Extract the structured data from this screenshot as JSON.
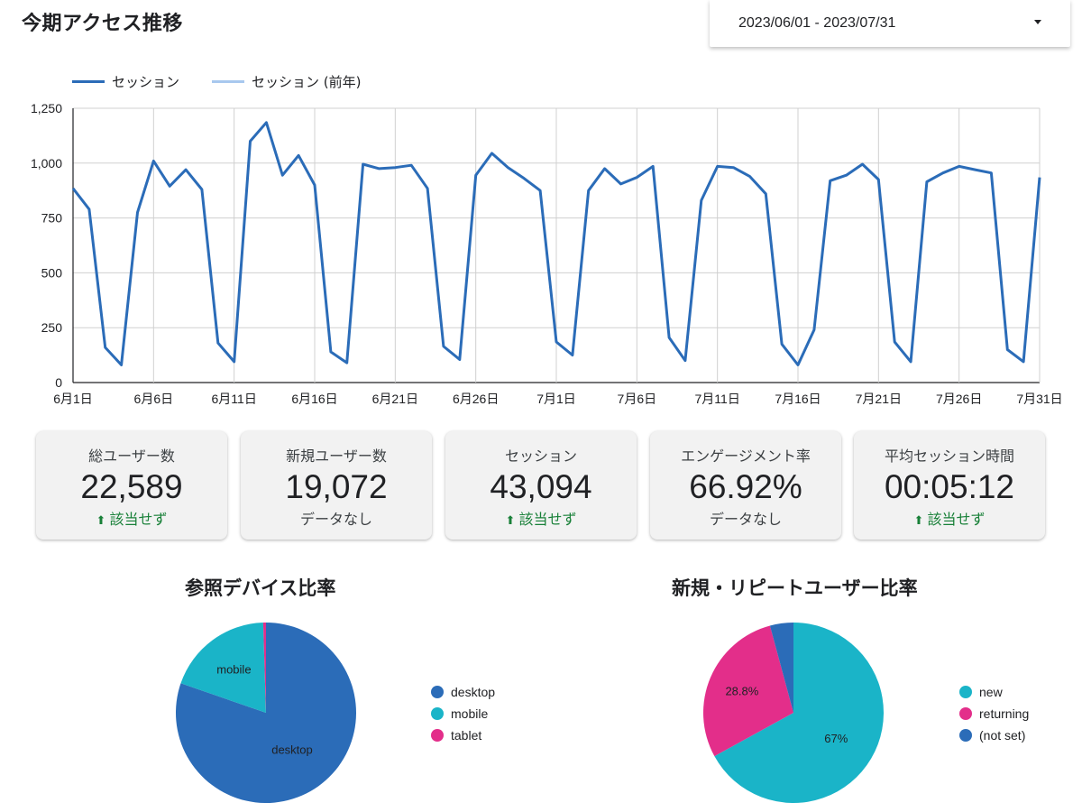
{
  "header": {
    "title": "今期アクセス推移",
    "date_range": "2023/06/01 - 2023/07/31"
  },
  "colors": {
    "series_current": "#2b6cb8",
    "series_previous": "#a8c8ee",
    "desktop": "#2b6cb8",
    "mobile": "#1ab4c8",
    "tablet": "#e32e8a",
    "new": "#1ab4c8",
    "returning": "#e32e8a",
    "not_set": "#2b6cb8",
    "positive": "#188038"
  },
  "chart_data": [
    {
      "type": "line",
      "legend": [
        "セッション",
        "セッション (前年)"
      ],
      "legend_position": "top-left",
      "grid": true,
      "ylim": [
        0,
        1250
      ],
      "y_ticks": [
        "0",
        "250",
        "500",
        "750",
        "1,000",
        "1,250"
      ],
      "x_ticks": [
        "6月1日",
        "6月6日",
        "6月11日",
        "6月16日",
        "6月21日",
        "6月26日",
        "7月1日",
        "7月6日",
        "7月11日",
        "7月16日",
        "7月21日",
        "7月26日",
        "7月31日"
      ],
      "series": [
        {
          "name": "セッション",
          "values": [
            885,
            790,
            160,
            80,
            775,
            1010,
            895,
            970,
            880,
            180,
            95,
            1100,
            1185,
            945,
            1035,
            900,
            140,
            90,
            995,
            975,
            980,
            990,
            885,
            165,
            105,
            945,
            1045,
            980,
            930,
            875,
            185,
            125,
            875,
            975,
            905,
            935,
            985,
            205,
            100,
            830,
            985,
            980,
            940,
            860,
            175,
            80,
            240,
            920,
            945,
            995,
            925,
            185,
            95,
            915,
            955,
            985,
            970,
            955,
            150,
            95,
            935
          ]
        },
        {
          "name": "セッション (前年)",
          "values": []
        }
      ]
    },
    {
      "type": "pie",
      "title": "参照デバイス比率",
      "legend_position": "right",
      "slices": [
        {
          "label": "desktop",
          "value": 80.3
        },
        {
          "label": "mobile",
          "value": 19.2
        },
        {
          "label": "tablet",
          "value": 0.5
        }
      ],
      "slice_labels": [
        "desktop",
        "mobile",
        ""
      ]
    },
    {
      "type": "pie",
      "title": "新規・リピートユーザー比率",
      "legend_position": "right",
      "slices": [
        {
          "label": "new",
          "value": 67
        },
        {
          "label": "returning",
          "value": 28.8
        },
        {
          "label": "(not set)",
          "value": 4.2
        }
      ],
      "slice_labels": [
        "67%",
        "28.8%",
        ""
      ]
    }
  ],
  "kpis": [
    {
      "label": "総ユーザー数",
      "value": "22,589",
      "sub": "該当せず",
      "trend": "up"
    },
    {
      "label": "新規ユーザー数",
      "value": "19,072",
      "sub": "データなし",
      "trend": "none"
    },
    {
      "label": "セッション",
      "value": "43,094",
      "sub": "該当せず",
      "trend": "up"
    },
    {
      "label": "エンゲージメント率",
      "value": "66.92%",
      "sub": "データなし",
      "trend": "none"
    },
    {
      "label": "平均セッション時間",
      "value": "00:05:12",
      "sub": "該当せず",
      "trend": "up"
    }
  ],
  "icons": {
    "arrow_up": "⬆"
  }
}
